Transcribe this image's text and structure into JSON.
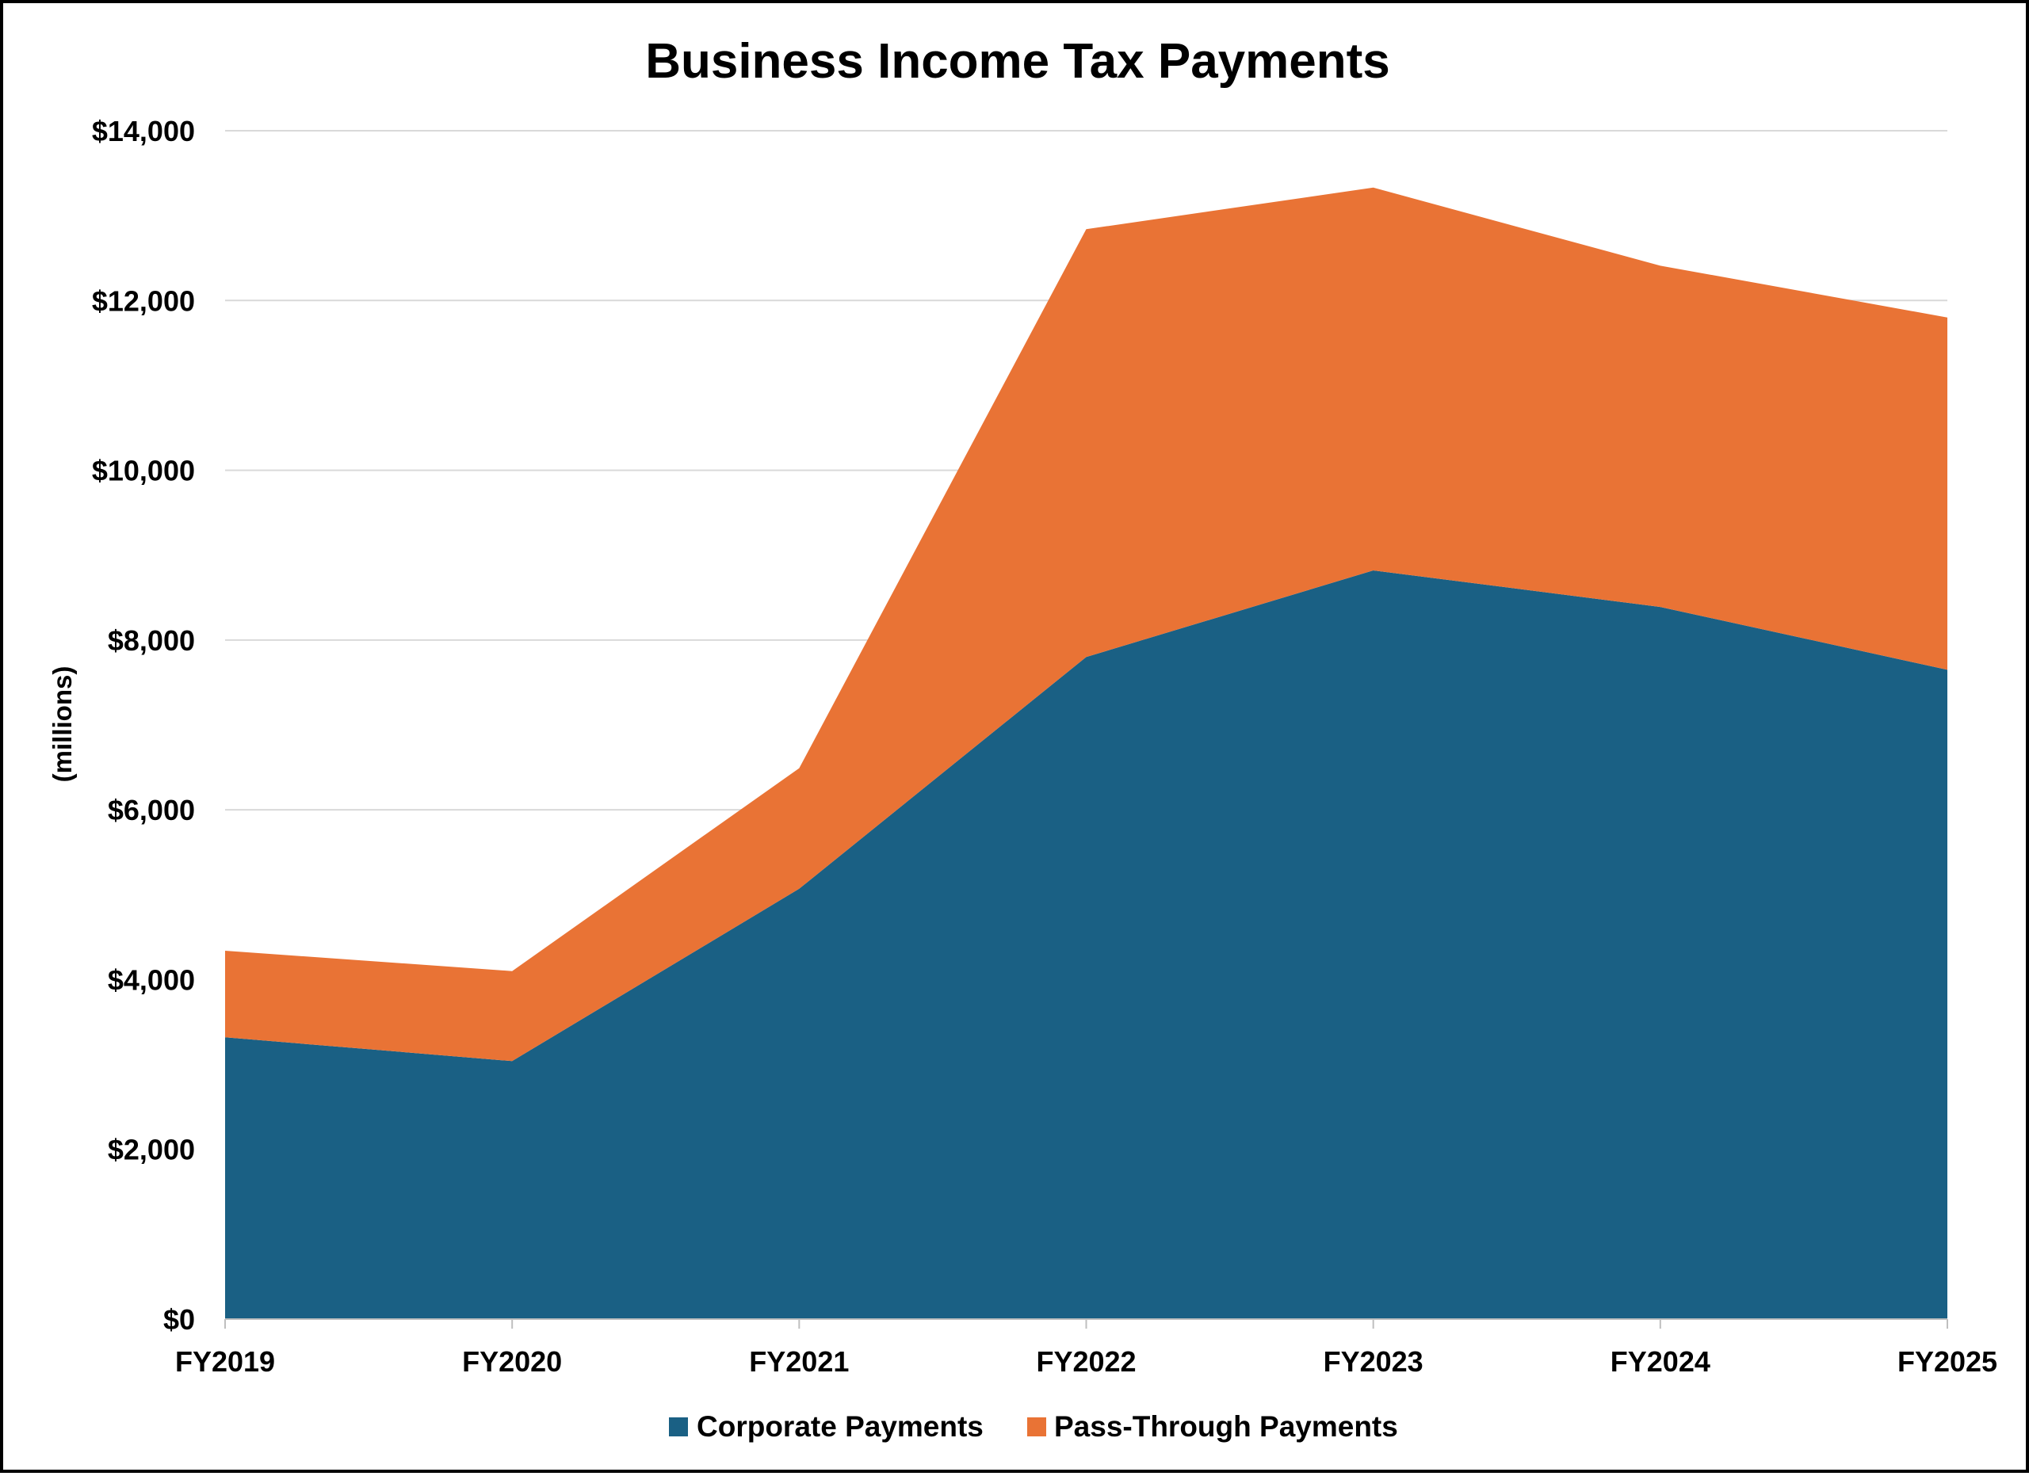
{
  "chart_data": {
    "type": "area",
    "stacked": true,
    "title": "Business Income Tax Payments",
    "ylabel": "(millions)",
    "xlabel": "",
    "categories": [
      "FY2019",
      "FY2020",
      "FY2021",
      "FY2022",
      "FY2023",
      "FY2024",
      "FY2025"
    ],
    "series": [
      {
        "name": "Corporate Payments",
        "color": "#1A6084",
        "values": [
          3320,
          3040,
          5070,
          7800,
          8820,
          8390,
          7650
        ]
      },
      {
        "name": "Pass-Through Payments",
        "color": "#E97335",
        "values": [
          1020,
          1060,
          1420,
          5040,
          4510,
          4020,
          4150
        ]
      }
    ],
    "ylim": [
      0,
      14000
    ],
    "yticks": [
      0,
      2000,
      4000,
      6000,
      8000,
      10000,
      12000,
      14000
    ],
    "ytick_labels": [
      "$0",
      "$2,000",
      "$4,000",
      "$6,000",
      "$8,000",
      "$10,000",
      "$12,000",
      "$14,000"
    ],
    "grid": true,
    "legend_position": "bottom"
  }
}
